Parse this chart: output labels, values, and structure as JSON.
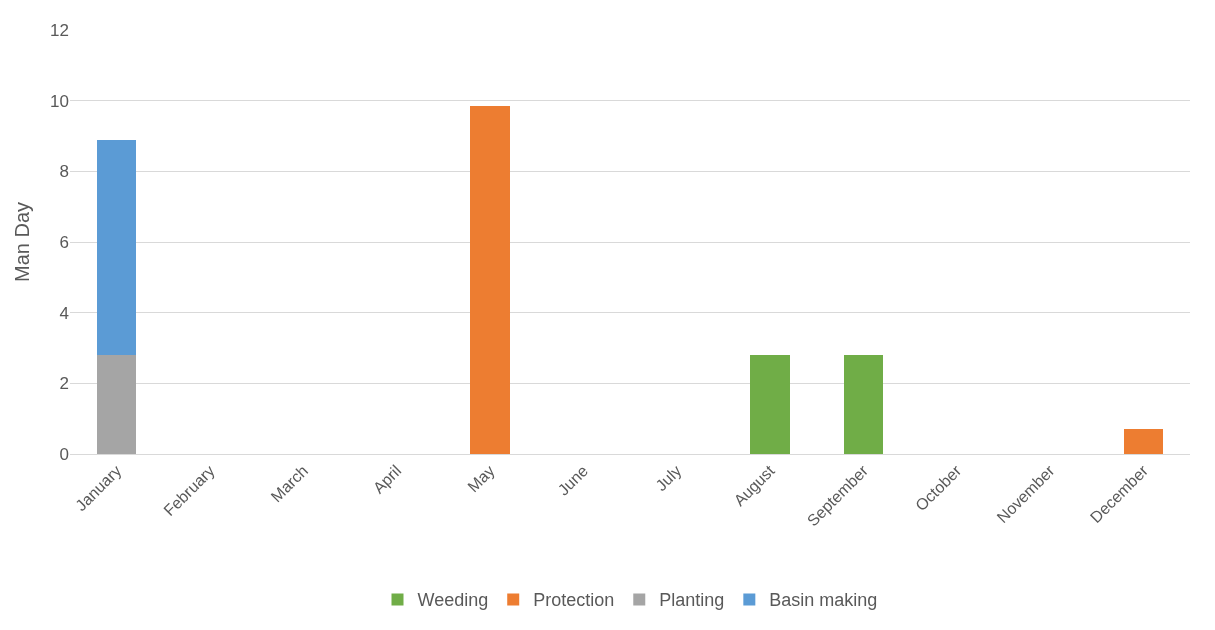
{
  "chart_data": {
    "type": "bar",
    "stacked": true,
    "ylabel": "Man Day",
    "categories": [
      "January",
      "February",
      "March",
      "April",
      "May",
      "June",
      "July",
      "August",
      "September",
      "October",
      "November",
      "December"
    ],
    "series": [
      {
        "name": "Weeding",
        "color": "#70ad47",
        "values": [
          null,
          null,
          null,
          null,
          null,
          null,
          null,
          2.8,
          2.8,
          null,
          null,
          null
        ]
      },
      {
        "name": "Protection",
        "color": "#ed7d31",
        "values": [
          null,
          null,
          null,
          null,
          9.85,
          null,
          null,
          null,
          null,
          null,
          null,
          0.7
        ]
      },
      {
        "name": "Planting",
        "color": "#a5a5a5",
        "values": [
          2.8,
          null,
          null,
          null,
          null,
          null,
          null,
          null,
          null,
          null,
          null,
          null
        ]
      },
      {
        "name": "Basin making",
        "color": "#5b9bd5",
        "values": [
          6.1,
          null,
          null,
          null,
          null,
          null,
          null,
          null,
          null,
          null,
          null,
          null
        ]
      }
    ],
    "ylim": [
      0,
      12
    ],
    "yticks": [
      0,
      2,
      4,
      6,
      8,
      10,
      12
    ],
    "grid": "y",
    "legend": "bottom"
  }
}
